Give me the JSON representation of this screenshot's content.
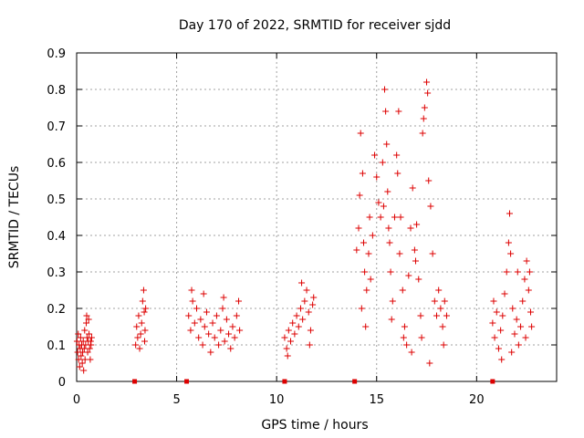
{
  "chart_data": {
    "type": "scatter",
    "title": "Day 170 of 2022, SRMTID for receiver sjdd",
    "xlabel": "GPS time / hours",
    "ylabel": "SRMTID / TECUs",
    "xlim": [
      0,
      24
    ],
    "ylim": [
      0,
      0.9
    ],
    "xticks": [
      0,
      5,
      10,
      15,
      20
    ],
    "xtick_labels": [
      "0",
      "5",
      "10",
      "15",
      "20"
    ],
    "yticks": [
      0,
      0.1,
      0.2,
      0.3,
      0.4,
      0.5,
      0.6,
      0.7,
      0.8,
      0.9
    ],
    "ytick_labels": [
      "0",
      "0.1",
      "0.2",
      "0.3",
      "0.4",
      "0.5",
      "0.6",
      "0.7",
      "0.8",
      "0.9"
    ],
    "grid": true,
    "marker": "+",
    "color": "#dd0000",
    "gap_markers_x": [
      2.9,
      5.5,
      10.4,
      13.9,
      20.8
    ],
    "series": [
      {
        "name": "SRMTID",
        "points": [
          [
            0.02,
            0.11
          ],
          [
            0.05,
            0.08
          ],
          [
            0.08,
            0.13
          ],
          [
            0.1,
            0.06
          ],
          [
            0.12,
            0.1
          ],
          [
            0.15,
            0.04
          ],
          [
            0.18,
            0.09
          ],
          [
            0.2,
            0.12
          ],
          [
            0.22,
            0.07
          ],
          [
            0.25,
            0.1
          ],
          [
            0.28,
            0.05
          ],
          [
            0.3,
            0.08
          ],
          [
            0.33,
            0.11
          ],
          [
            0.35,
            0.03
          ],
          [
            0.38,
            0.09
          ],
          [
            0.4,
            0.14
          ],
          [
            0.42,
            0.06
          ],
          [
            0.45,
            0.1
          ],
          [
            0.48,
            0.16
          ],
          [
            0.5,
            0.18
          ],
          [
            0.52,
            0.12
          ],
          [
            0.55,
            0.08
          ],
          [
            0.58,
            0.11
          ],
          [
            0.6,
            0.17
          ],
          [
            0.62,
            0.13
          ],
          [
            0.65,
            0.09
          ],
          [
            0.68,
            0.06
          ],
          [
            0.7,
            0.11
          ],
          [
            0.72,
            0.1
          ],
          [
            0.75,
            0.12
          ],
          [
            2.95,
            0.1
          ],
          [
            3.0,
            0.15
          ],
          [
            3.05,
            0.12
          ],
          [
            3.1,
            0.18
          ],
          [
            3.15,
            0.09
          ],
          [
            3.2,
            0.13
          ],
          [
            3.25,
            0.16
          ],
          [
            3.3,
            0.22
          ],
          [
            3.35,
            0.25
          ],
          [
            3.38,
            0.19
          ],
          [
            3.4,
            0.11
          ],
          [
            3.42,
            0.14
          ],
          [
            3.45,
            0.2
          ],
          [
            5.6,
            0.18
          ],
          [
            5.7,
            0.14
          ],
          [
            5.8,
            0.22
          ],
          [
            5.9,
            0.16
          ],
          [
            6.0,
            0.2
          ],
          [
            6.1,
            0.12
          ],
          [
            6.2,
            0.17
          ],
          [
            6.3,
            0.1
          ],
          [
            6.4,
            0.15
          ],
          [
            6.5,
            0.19
          ],
          [
            6.6,
            0.13
          ],
          [
            6.7,
            0.08
          ],
          [
            6.8,
            0.16
          ],
          [
            6.9,
            0.12
          ],
          [
            7.0,
            0.18
          ],
          [
            7.1,
            0.1
          ],
          [
            7.2,
            0.14
          ],
          [
            7.3,
            0.2
          ],
          [
            7.4,
            0.11
          ],
          [
            7.5,
            0.17
          ],
          [
            7.6,
            0.13
          ],
          [
            7.7,
            0.09
          ],
          [
            7.8,
            0.15
          ],
          [
            7.9,
            0.12
          ],
          [
            8.0,
            0.18
          ],
          [
            8.1,
            0.22
          ],
          [
            8.15,
            0.14
          ],
          [
            6.35,
            0.24
          ],
          [
            5.75,
            0.25
          ],
          [
            7.35,
            0.23
          ],
          [
            10.4,
            0.12
          ],
          [
            10.5,
            0.09
          ],
          [
            10.6,
            0.14
          ],
          [
            10.7,
            0.11
          ],
          [
            10.8,
            0.16
          ],
          [
            10.9,
            0.13
          ],
          [
            11.0,
            0.18
          ],
          [
            11.1,
            0.15
          ],
          [
            11.2,
            0.2
          ],
          [
            11.3,
            0.17
          ],
          [
            11.4,
            0.22
          ],
          [
            11.5,
            0.25
          ],
          [
            11.6,
            0.19
          ],
          [
            11.7,
            0.14
          ],
          [
            11.8,
            0.21
          ],
          [
            11.85,
            0.23
          ],
          [
            10.55,
            0.07
          ],
          [
            11.25,
            0.27
          ],
          [
            11.65,
            0.1
          ],
          [
            14.0,
            0.36
          ],
          [
            14.1,
            0.42
          ],
          [
            14.15,
            0.51
          ],
          [
            14.2,
            0.68
          ],
          [
            14.3,
            0.57
          ],
          [
            14.35,
            0.38
          ],
          [
            14.4,
            0.3
          ],
          [
            14.5,
            0.25
          ],
          [
            14.6,
            0.35
          ],
          [
            14.7,
            0.28
          ],
          [
            14.8,
            0.4
          ],
          [
            14.9,
            0.62
          ],
          [
            15.0,
            0.56
          ],
          [
            15.1,
            0.49
          ],
          [
            15.2,
            0.45
          ],
          [
            15.3,
            0.6
          ],
          [
            15.4,
            0.8
          ],
          [
            15.45,
            0.74
          ],
          [
            15.5,
            0.65
          ],
          [
            15.55,
            0.52
          ],
          [
            15.6,
            0.42
          ],
          [
            15.65,
            0.38
          ],
          [
            15.7,
            0.3
          ],
          [
            15.8,
            0.22
          ],
          [
            15.9,
            0.45
          ],
          [
            16.0,
            0.62
          ],
          [
            16.05,
            0.57
          ],
          [
            16.1,
            0.74
          ],
          [
            16.2,
            0.45
          ],
          [
            16.3,
            0.25
          ],
          [
            16.4,
            0.15
          ],
          [
            16.5,
            0.1
          ],
          [
            16.6,
            0.29
          ],
          [
            16.7,
            0.42
          ],
          [
            16.8,
            0.53
          ],
          [
            16.9,
            0.36
          ],
          [
            17.0,
            0.43
          ],
          [
            17.1,
            0.28
          ],
          [
            17.2,
            0.18
          ],
          [
            17.3,
            0.68
          ],
          [
            17.35,
            0.72
          ],
          [
            17.4,
            0.75
          ],
          [
            17.5,
            0.82
          ],
          [
            17.55,
            0.79
          ],
          [
            17.6,
            0.55
          ],
          [
            17.7,
            0.48
          ],
          [
            17.8,
            0.35
          ],
          [
            17.9,
            0.22
          ],
          [
            18.0,
            0.18
          ],
          [
            18.1,
            0.25
          ],
          [
            18.2,
            0.2
          ],
          [
            18.3,
            0.15
          ],
          [
            18.4,
            0.22
          ],
          [
            18.5,
            0.18
          ],
          [
            14.25,
            0.2
          ],
          [
            14.45,
            0.15
          ],
          [
            15.75,
            0.17
          ],
          [
            16.35,
            0.12
          ],
          [
            16.75,
            0.08
          ],
          [
            17.25,
            0.12
          ],
          [
            17.65,
            0.05
          ],
          [
            18.35,
            0.1
          ],
          [
            14.65,
            0.45
          ],
          [
            15.35,
            0.48
          ],
          [
            16.15,
            0.35
          ],
          [
            16.95,
            0.33
          ],
          [
            20.8,
            0.16
          ],
          [
            20.9,
            0.12
          ],
          [
            21.0,
            0.19
          ],
          [
            21.1,
            0.09
          ],
          [
            21.2,
            0.14
          ],
          [
            21.3,
            0.18
          ],
          [
            21.4,
            0.24
          ],
          [
            21.5,
            0.3
          ],
          [
            21.6,
            0.38
          ],
          [
            21.65,
            0.46
          ],
          [
            21.7,
            0.35
          ],
          [
            21.8,
            0.2
          ],
          [
            21.9,
            0.13
          ],
          [
            22.0,
            0.17
          ],
          [
            22.1,
            0.1
          ],
          [
            22.2,
            0.15
          ],
          [
            22.3,
            0.22
          ],
          [
            22.4,
            0.28
          ],
          [
            22.5,
            0.33
          ],
          [
            22.6,
            0.25
          ],
          [
            22.7,
            0.19
          ],
          [
            22.75,
            0.15
          ],
          [
            20.85,
            0.22
          ],
          [
            21.25,
            0.06
          ],
          [
            21.75,
            0.08
          ],
          [
            22.05,
            0.3
          ],
          [
            22.45,
            0.12
          ],
          [
            22.65,
            0.3
          ]
        ]
      }
    ]
  }
}
